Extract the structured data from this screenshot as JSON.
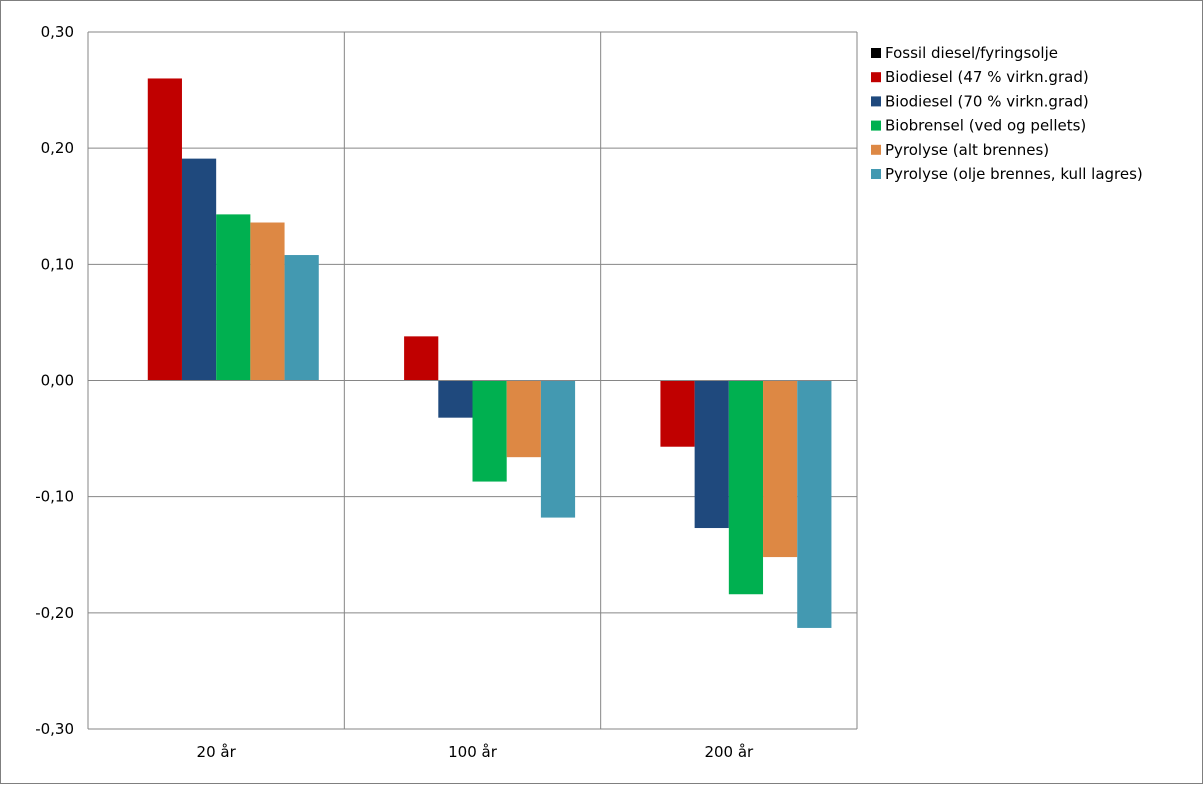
{
  "chart_data": {
    "type": "bar",
    "categories": [
      "20 år",
      "100 år",
      "200 år"
    ],
    "series": [
      {
        "name": "Fossil diesel/fyringsolje",
        "color": "#000000",
        "values": [
          0,
          0,
          0
        ]
      },
      {
        "name": "Biodiesel (47 % virkn.grad)",
        "color": "#C00000",
        "values": [
          0.26,
          0.038,
          -0.057
        ]
      },
      {
        "name": "Biodiesel (70 % virkn.grad)",
        "color": "#1F497D",
        "values": [
          0.191,
          -0.032,
          -0.127
        ]
      },
      {
        "name": "Biobrensel (ved og pellets)",
        "color": "#00B050",
        "values": [
          0.143,
          -0.087,
          -0.184
        ]
      },
      {
        "name": "Pyrolyse (alt brennes)",
        "color": "#DD8844",
        "values": [
          0.136,
          -0.066,
          -0.152
        ]
      },
      {
        "name": "Pyrolyse (olje brennes, kull lagres)",
        "color": "#4399B1",
        "values": [
          0.108,
          -0.118,
          -0.213
        ]
      }
    ],
    "y_ticks": [
      "0,30",
      "0,20",
      "0,10",
      "0,00",
      "-0,10",
      "-0,20",
      "-0,30"
    ],
    "ylim": [
      -0.3,
      0.3
    ],
    "title": "",
    "xlabel": "",
    "ylabel": "",
    "grid": true,
    "legend": "right"
  }
}
